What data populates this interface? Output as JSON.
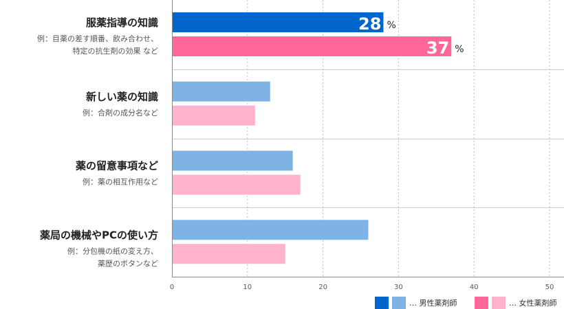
{
  "chart_data": {
    "type": "bar",
    "orientation": "horizontal",
    "title": "",
    "xlim": [
      0,
      50
    ],
    "xticks": [
      "0",
      "10",
      "20",
      "30",
      "40",
      "50"
    ],
    "grid": true,
    "legend_position": "bottom-right",
    "categories": [
      {
        "title": "服薬指導の知識",
        "sub": [
          "例：目薬の差す順番、飲み合わせ、",
          "特定の抗生剤の効果 など"
        ]
      },
      {
        "title": "新しい薬の知識",
        "sub": [
          "例：合剤の成分名など"
        ]
      },
      {
        "title": "薬の留意事項など",
        "sub": [
          "例：薬の相互作用など"
        ]
      },
      {
        "title": "薬局の機械やPCの使い方",
        "sub": [
          "例：分包機の紙の変え方、",
          "薬歴のボタンなど"
        ]
      }
    ],
    "series": [
      {
        "name": "男性薬剤師",
        "legend_label": "… 男性薬剤師",
        "values": [
          28,
          13,
          16,
          26
        ],
        "color_highlight": "#0066cc",
        "color": "#7fb2e5"
      },
      {
        "name": "女性薬剤師",
        "legend_label": "… 女性薬剤師",
        "values": [
          37,
          11,
          17,
          15
        ],
        "color_highlight": "#ff6699",
        "color": "#ffb2cc"
      }
    ],
    "highlight_category": 0,
    "value_suffix": "%"
  }
}
